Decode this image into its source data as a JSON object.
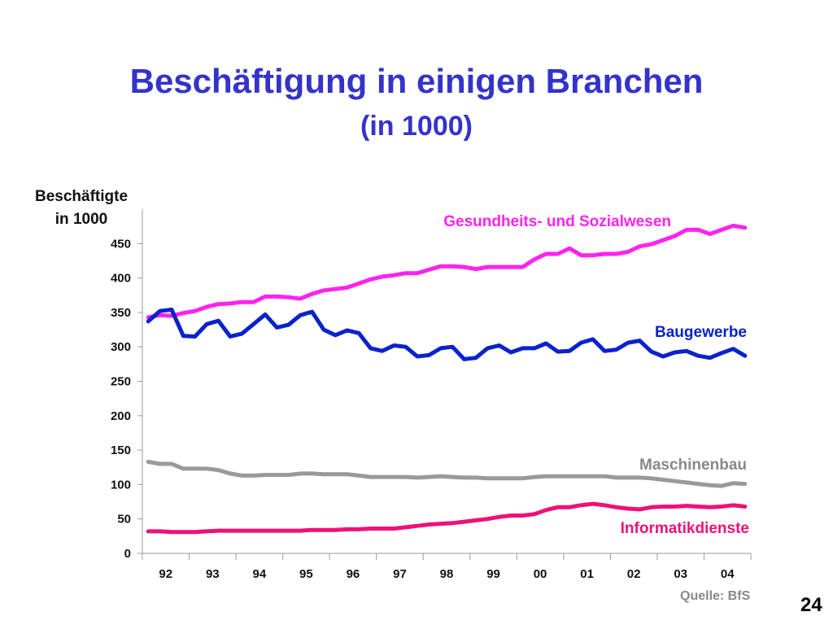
{
  "slide": {
    "title": "Beschäftigung in einigen Branchen",
    "subtitle": "(in 1000)",
    "source": "Quelle: BfS",
    "page_number": "24"
  },
  "chart_data": {
    "type": "line",
    "title": "Beschäftigung in einigen Branchen",
    "subtitle": "(in 1000)",
    "ylabel": "Beschäftigte in 1000",
    "ylabel_lines": [
      "Beschäftigte",
      "in 1000"
    ],
    "xlabel": "",
    "ylim": [
      0,
      500
    ],
    "yticks": [
      0,
      50,
      100,
      150,
      200,
      250,
      300,
      350,
      400,
      450
    ],
    "x_tick_labels": [
      "92",
      "93",
      "94",
      "95",
      "96",
      "97",
      "98",
      "99",
      "00",
      "01",
      "02",
      "03",
      "04"
    ],
    "x_start_year": 1992,
    "points_per_year": 4,
    "grid": false,
    "legend": "inline labels",
    "series": [
      {
        "name": "Gesundheits- und Sozialwesen",
        "color": "#ff22ee",
        "values": [
          343,
          346,
          345,
          349,
          352,
          358,
          362,
          363,
          365,
          365,
          373,
          373,
          372,
          370,
          377,
          382,
          384,
          386,
          392,
          398,
          402,
          404,
          407,
          407,
          412,
          417,
          417,
          416,
          413,
          416,
          416,
          416,
          416,
          427,
          435,
          435,
          443,
          433,
          433,
          435,
          435,
          438,
          446,
          449,
          455,
          461,
          470,
          470,
          464,
          470,
          476,
          473
        ]
      },
      {
        "name": "Baugewerbe",
        "color": "#0a22cc",
        "values": [
          337,
          352,
          354,
          316,
          315,
          333,
          338,
          315,
          319,
          333,
          347,
          328,
          332,
          346,
          351,
          325,
          317,
          324,
          320,
          298,
          294,
          302,
          300,
          286,
          288,
          298,
          300,
          282,
          284,
          298,
          302,
          292,
          298,
          298,
          305,
          293,
          294,
          306,
          311,
          294,
          296,
          306,
          309,
          293,
          286,
          292,
          294,
          287,
          284,
          291,
          297,
          287
        ]
      },
      {
        "name": "Maschinenbau",
        "color": "#999999",
        "values": [
          133,
          130,
          130,
          123,
          123,
          123,
          121,
          116,
          113,
          113,
          114,
          114,
          114,
          116,
          116,
          115,
          115,
          115,
          113,
          111,
          111,
          111,
          111,
          110,
          111,
          112,
          111,
          110,
          110,
          109,
          109,
          109,
          109,
          111,
          112,
          112,
          112,
          112,
          112,
          112,
          110,
          110,
          110,
          109,
          107,
          105,
          103,
          101,
          99,
          98,
          102,
          101
        ]
      },
      {
        "name": "Informatikdienste",
        "color": "#ee1177",
        "values": [
          32,
          32,
          31,
          31,
          31,
          32,
          33,
          33,
          33,
          33,
          33,
          33,
          33,
          33,
          34,
          34,
          34,
          35,
          35,
          36,
          36,
          36,
          38,
          40,
          42,
          43,
          44,
          46,
          48,
          50,
          53,
          55,
          55,
          57,
          63,
          67,
          67,
          70,
          72,
          70,
          67,
          65,
          64,
          67,
          68,
          68,
          69,
          68,
          67,
          68,
          70,
          68
        ]
      }
    ]
  }
}
